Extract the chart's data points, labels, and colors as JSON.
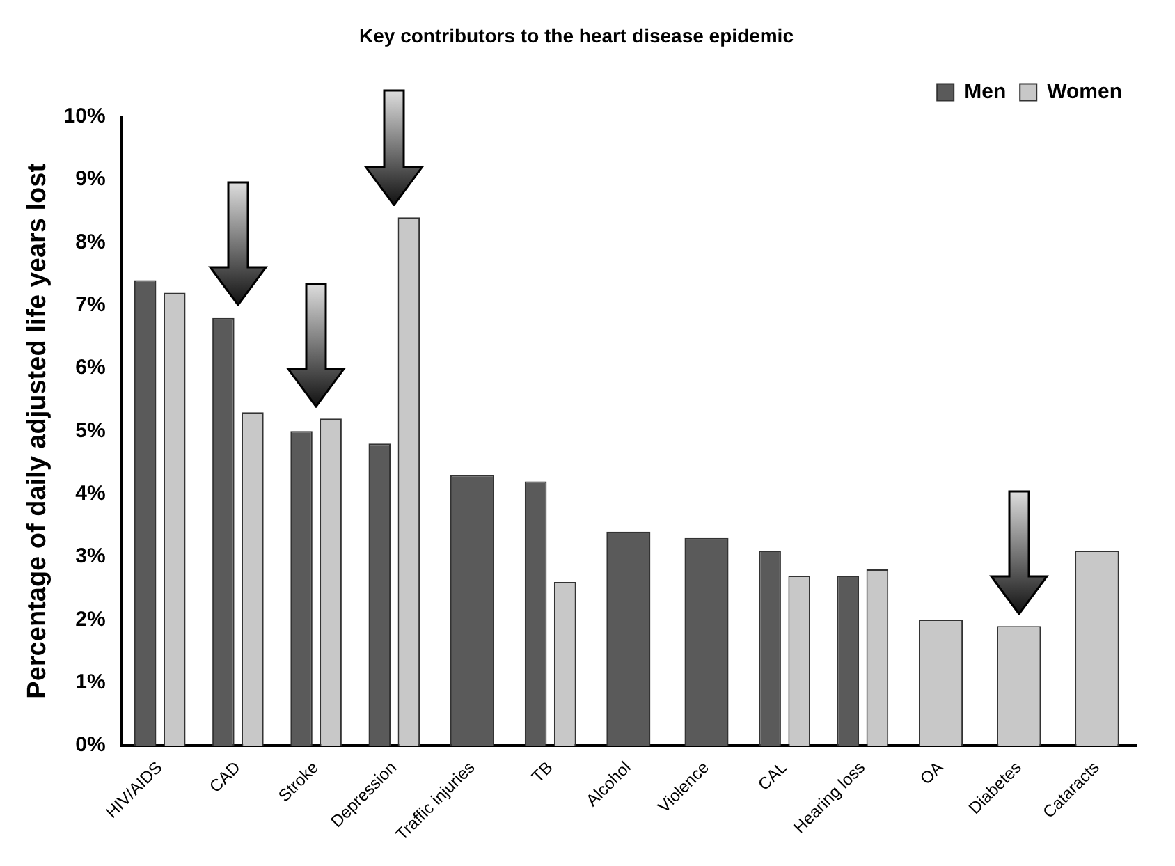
{
  "chart_data": {
    "type": "bar",
    "title": "Key contributors to the heart disease epidemic",
    "ylabel": "Percentage of daily adjusted life years lost",
    "categories": [
      "HIV/AIDS",
      "CAD",
      "Stroke",
      "Depression",
      "Traffic injuries",
      "TB",
      "Alcohol",
      "Violence",
      "CAL",
      "Hearing loss",
      "OA",
      "Diabetes",
      "Cataracts"
    ],
    "series": [
      {
        "name": "Men",
        "color": "#5a5a5a",
        "values": [
          7.4,
          6.8,
          5.0,
          4.8,
          4.3,
          4.2,
          3.4,
          3.3,
          3.1,
          2.7,
          null,
          null,
          null
        ]
      },
      {
        "name": "Women",
        "color": "#c8c8c8",
        "values": [
          7.2,
          5.3,
          5.2,
          8.4,
          null,
          2.6,
          null,
          null,
          2.7,
          2.8,
          2.0,
          1.9,
          3.1
        ]
      }
    ],
    "ylim": [
      0,
      10
    ],
    "yticks": [
      {
        "value": 0,
        "label": "0%"
      },
      {
        "value": 1,
        "label": "1%"
      },
      {
        "value": 2,
        "label": "2%"
      },
      {
        "value": 3,
        "label": "3%"
      },
      {
        "value": 4,
        "label": "4%"
      },
      {
        "value": 5,
        "label": "5%"
      },
      {
        "value": 6,
        "label": "6%"
      },
      {
        "value": 7,
        "label": "7%"
      },
      {
        "value": 8,
        "label": "8%"
      },
      {
        "value": 9,
        "label": "9%"
      },
      {
        "value": 10,
        "label": "10%"
      }
    ],
    "grid": false,
    "legend": "top right"
  }
}
